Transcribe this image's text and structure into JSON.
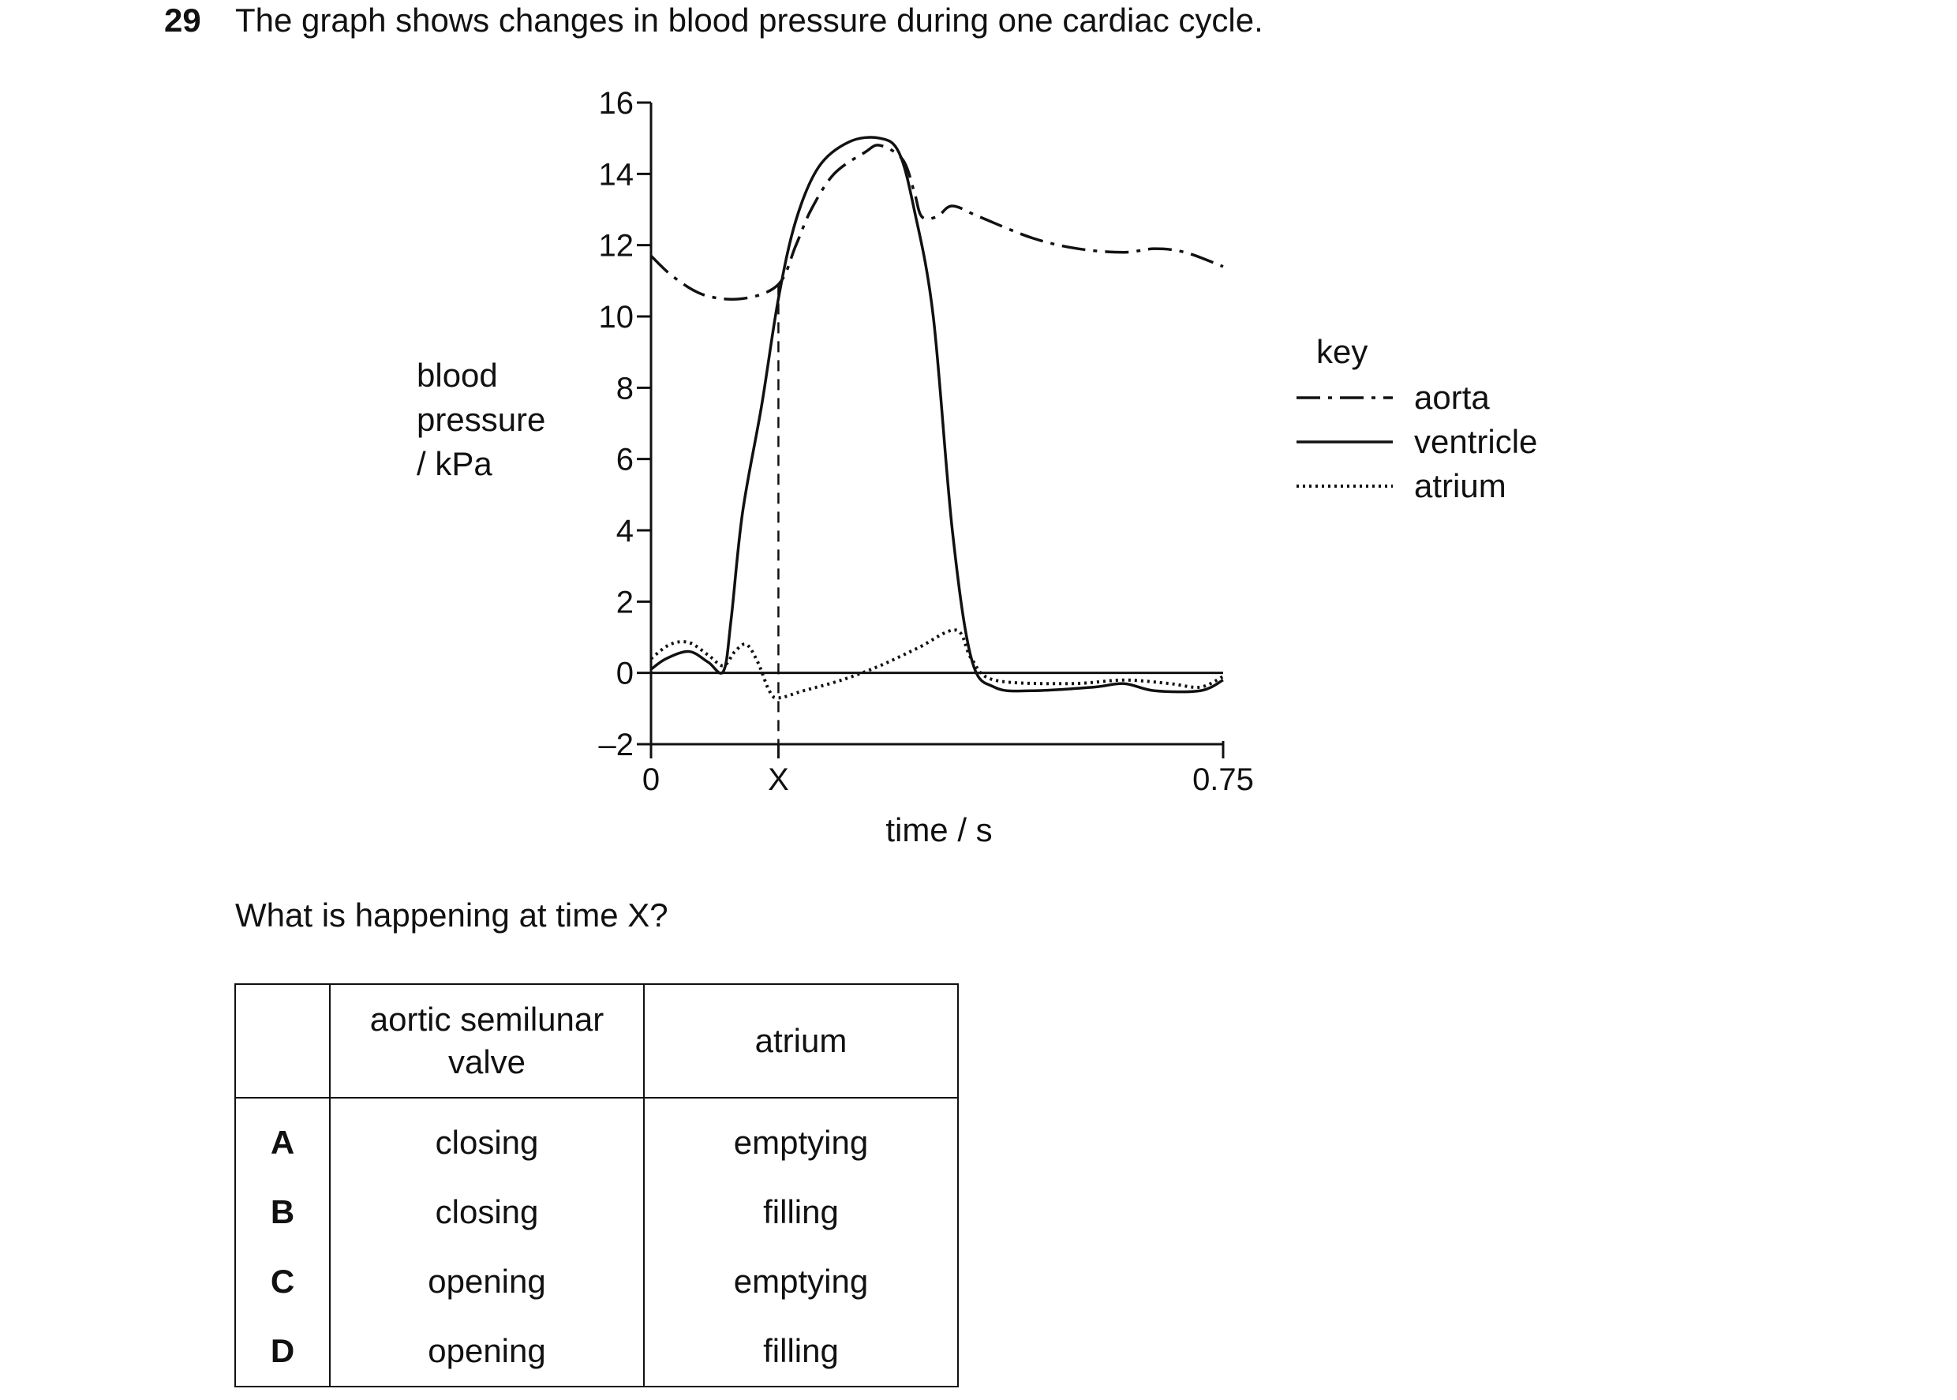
{
  "question": {
    "number": "29",
    "text": "The graph shows changes in blood pressure during one cardiac cycle.",
    "prompt": "What is happening at time X?"
  },
  "chart_data": {
    "type": "line",
    "xlabel": "time / s",
    "ylabel_lines": [
      "blood",
      "pressure",
      "/ kPa"
    ],
    "xlim": [
      0,
      0.75
    ],
    "ylim": [
      -2,
      16
    ],
    "x_tick_labels": [
      "0",
      "X",
      "0.75"
    ],
    "y_ticks": [
      16,
      14,
      12,
      10,
      8,
      6,
      4,
      2,
      0,
      -2
    ],
    "y_tick_labels": [
      "16",
      "14",
      "12",
      "10",
      "8",
      "6",
      "4",
      "2",
      "0",
      "–2"
    ],
    "marker_x": 0.167,
    "marker_label": "X",
    "legend": {
      "title": "key",
      "placement": "right"
    },
    "series": [
      {
        "name": "aorta",
        "style": "dash-dot",
        "points": [
          [
            0,
            11.7
          ],
          [
            0.03,
            11.1
          ],
          [
            0.07,
            10.6
          ],
          [
            0.12,
            10.5
          ],
          [
            0.167,
            10.9
          ],
          [
            0.19,
            12.0
          ],
          [
            0.21,
            13.0
          ],
          [
            0.24,
            14.0
          ],
          [
            0.28,
            14.6
          ],
          [
            0.3,
            14.8
          ],
          [
            0.33,
            14.4
          ],
          [
            0.345,
            13.5
          ],
          [
            0.355,
            12.8
          ],
          [
            0.375,
            12.8
          ],
          [
            0.395,
            13.1
          ],
          [
            0.43,
            12.8
          ],
          [
            0.5,
            12.2
          ],
          [
            0.56,
            11.9
          ],
          [
            0.62,
            11.8
          ],
          [
            0.66,
            11.9
          ],
          [
            0.7,
            11.8
          ],
          [
            0.75,
            11.4
          ]
        ]
      },
      {
        "name": "ventricle",
        "style": "solid",
        "points": [
          [
            0,
            0.1
          ],
          [
            0.02,
            0.4
          ],
          [
            0.05,
            0.6
          ],
          [
            0.075,
            0.3
          ],
          [
            0.095,
            0.05
          ],
          [
            0.105,
            1.5
          ],
          [
            0.12,
            4.5
          ],
          [
            0.145,
            7.5
          ],
          [
            0.167,
            10.5
          ],
          [
            0.19,
            12.7
          ],
          [
            0.22,
            14.2
          ],
          [
            0.26,
            14.9
          ],
          [
            0.3,
            15.0
          ],
          [
            0.325,
            14.6
          ],
          [
            0.345,
            13.0
          ],
          [
            0.37,
            10.0
          ],
          [
            0.395,
            4.0
          ],
          [
            0.42,
            0.4
          ],
          [
            0.45,
            -0.4
          ],
          [
            0.5,
            -0.5
          ],
          [
            0.58,
            -0.4
          ],
          [
            0.62,
            -0.3
          ],
          [
            0.66,
            -0.5
          ],
          [
            0.72,
            -0.5
          ],
          [
            0.75,
            -0.2
          ]
        ]
      },
      {
        "name": "atrium",
        "style": "dotted",
        "points": [
          [
            0,
            0.4
          ],
          [
            0.025,
            0.8
          ],
          [
            0.05,
            0.85
          ],
          [
            0.075,
            0.5
          ],
          [
            0.095,
            0.2
          ],
          [
            0.11,
            0.6
          ],
          [
            0.125,
            0.8
          ],
          [
            0.14,
            0.3
          ],
          [
            0.155,
            -0.5
          ],
          [
            0.167,
            -0.7
          ],
          [
            0.2,
            -0.5
          ],
          [
            0.25,
            -0.2
          ],
          [
            0.3,
            0.2
          ],
          [
            0.35,
            0.7
          ],
          [
            0.4,
            1.2
          ],
          [
            0.42,
            0.4
          ],
          [
            0.45,
            -0.2
          ],
          [
            0.55,
            -0.3
          ],
          [
            0.62,
            -0.2
          ],
          [
            0.68,
            -0.3
          ],
          [
            0.72,
            -0.4
          ],
          [
            0.75,
            -0.1
          ]
        ]
      }
    ]
  },
  "table": {
    "headers": [
      "",
      "aortic semilunar valve",
      "atrium"
    ],
    "rows": [
      {
        "letter": "A",
        "valve": "closing",
        "atrium": "emptying"
      },
      {
        "letter": "B",
        "valve": "closing",
        "atrium": "filling"
      },
      {
        "letter": "C",
        "valve": "opening",
        "atrium": "emptying"
      },
      {
        "letter": "D",
        "valve": "opening",
        "atrium": "filling"
      }
    ]
  }
}
